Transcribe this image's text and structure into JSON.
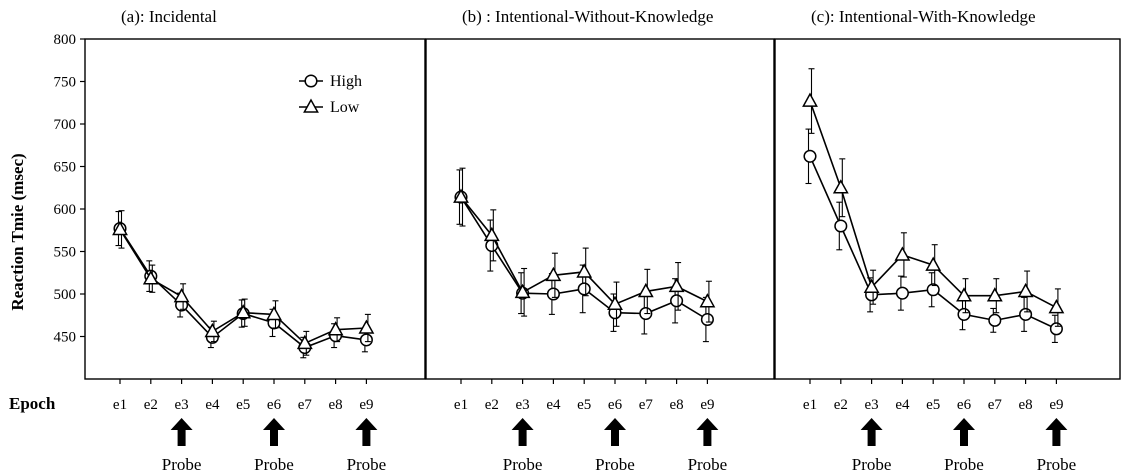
{
  "figure": {
    "ylabel": "Reaction Tmie (msec)",
    "epoch_label": "Epoch",
    "probe_label": "Probe",
    "legend": {
      "high": "High",
      "low": "Low"
    }
  },
  "chart_data": [
    {
      "type": "line",
      "title": "(a): Incidental",
      "categories": [
        "e1",
        "e2",
        "e3",
        "e4",
        "e5",
        "e6",
        "e7",
        "e8",
        "e9"
      ],
      "ylim": [
        400,
        800
      ],
      "yticks": [
        450,
        500,
        550,
        600,
        650,
        700,
        750,
        800
      ],
      "ylabel": "Reaction Tmie (msec)",
      "xlabel": "Epoch",
      "probe_epochs": [
        "e3",
        "e6",
        "e9"
      ],
      "legend": "top-right",
      "series": [
        {
          "name": "High",
          "marker": "circle",
          "values": [
            577,
            521,
            487,
            449,
            477,
            466,
            437,
            451,
            446
          ],
          "errors": [
            20,
            18,
            14,
            12,
            16,
            16,
            12,
            14,
            14
          ]
        },
        {
          "name": "Low",
          "marker": "triangle",
          "values": [
            576,
            518,
            497,
            456,
            478,
            476,
            442,
            458,
            460
          ],
          "errors": [
            22,
            16,
            15,
            12,
            16,
            16,
            14,
            14,
            16
          ]
        }
      ]
    },
    {
      "type": "line",
      "title": "(b) : Intentional-Without-Knowledge",
      "categories": [
        "e1",
        "e2",
        "e3",
        "e4",
        "e5",
        "e6",
        "e7",
        "e8",
        "e9"
      ],
      "ylim": [
        400,
        800
      ],
      "probe_epochs": [
        "e3",
        "e6",
        "e9"
      ],
      "series": [
        {
          "name": "High",
          "marker": "circle",
          "values": [
            614,
            557,
            501,
            500,
            506,
            478,
            477,
            492,
            470
          ],
          "errors": [
            32,
            30,
            24,
            24,
            28,
            22,
            24,
            26,
            26
          ]
        },
        {
          "name": "Low",
          "marker": "triangle",
          "values": [
            614,
            569,
            502,
            522,
            526,
            488,
            503,
            509,
            491
          ],
          "errors": [
            34,
            30,
            28,
            26,
            28,
            26,
            26,
            28,
            24
          ]
        }
      ]
    },
    {
      "type": "line",
      "title": "(c): Intentional-With-Knowledge",
      "categories": [
        "e1",
        "e2",
        "e3",
        "e4",
        "e5",
        "e6",
        "e7",
        "e8",
        "e9"
      ],
      "ylim": [
        400,
        800
      ],
      "probe_epochs": [
        "e3",
        "e6",
        "e9"
      ],
      "series": [
        {
          "name": "High",
          "marker": "circle",
          "values": [
            662,
            580,
            499,
            501,
            505,
            476,
            469,
            476,
            459
          ],
          "errors": [
            32,
            28,
            20,
            20,
            20,
            18,
            14,
            20,
            16
          ]
        },
        {
          "name": "Low",
          "marker": "triangle",
          "values": [
            727,
            625,
            508,
            546,
            534,
            498,
            498,
            503,
            484
          ],
          "errors": [
            38,
            34,
            20,
            26,
            24,
            20,
            20,
            24,
            22
          ]
        }
      ]
    }
  ]
}
